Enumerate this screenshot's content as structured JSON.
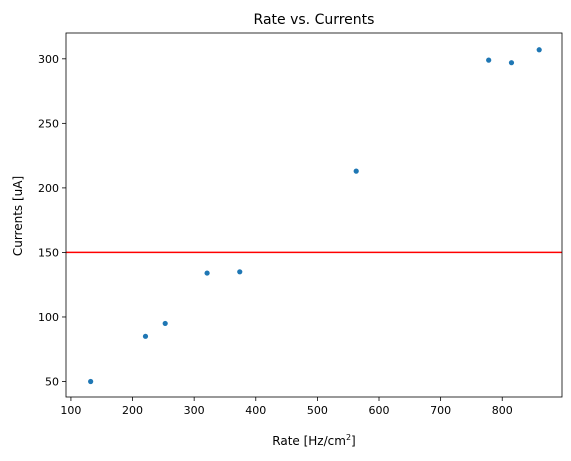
{
  "chart_data": {
    "type": "scatter",
    "title": "Rate vs. Currents",
    "xlabel": "Rate [Hz/cm",
    "xlabel_superscript": "2",
    "xlabel_suffix": "]",
    "ylabel": "Currents [uA]",
    "xlim": [
      92,
      897
    ],
    "ylim": [
      38,
      320
    ],
    "xticks": [
      100,
      200,
      300,
      400,
      500,
      600,
      700,
      800
    ],
    "yticks": [
      50,
      100,
      150,
      200,
      250,
      300
    ],
    "grid": false,
    "series": [
      {
        "color": "#1f77b4",
        "points": [
          {
            "x": 132,
            "y": 50
          },
          {
            "x": 221,
            "y": 85
          },
          {
            "x": 253,
            "y": 95
          },
          {
            "x": 321,
            "y": 134
          },
          {
            "x": 374,
            "y": 135
          },
          {
            "x": 563,
            "y": 213
          },
          {
            "x": 778,
            "y": 299
          },
          {
            "x": 815,
            "y": 297
          },
          {
            "x": 860,
            "y": 307
          }
        ]
      }
    ],
    "reference_line": {
      "orientation": "horizontal",
      "y": 150,
      "color": "#ff0000"
    }
  }
}
